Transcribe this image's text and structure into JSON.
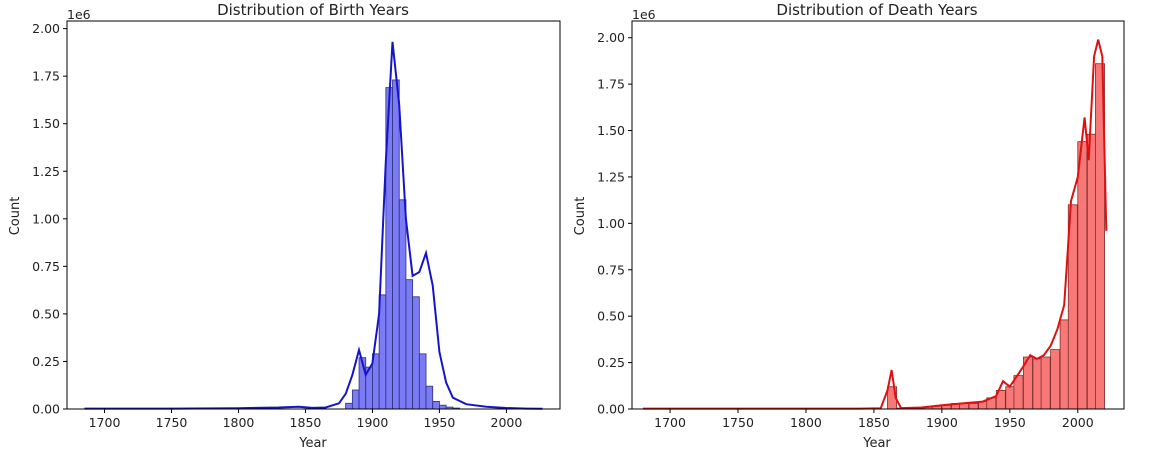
{
  "chart_data": [
    {
      "type": "bar",
      "title": "Distribution of Birth Years",
      "xlabel": "Year",
      "ylabel": "Count",
      "y_offset_label": "1e6",
      "xlim": [
        1672,
        2040
      ],
      "ylim": [
        0,
        2.04
      ],
      "x_ticks": [
        1700,
        1750,
        1800,
        1850,
        1900,
        1950,
        2000
      ],
      "y_ticks": [
        0.0,
        0.25,
        0.5,
        0.75,
        1.0,
        1.25,
        1.5,
        1.75,
        2.0
      ],
      "x_tick_labels": [
        "1700",
        "1750",
        "1800",
        "1850",
        "1900",
        "1950",
        "2000"
      ],
      "y_tick_labels": [
        "0.00",
        "0.25",
        "0.50",
        "0.75",
        "1.00",
        "1.25",
        "1.50",
        "1.75",
        "2.00"
      ],
      "grid": false,
      "colors": {
        "bar_fill": "#7b7bf5",
        "bar_edge": "#2f2f7a",
        "kde": "#1515c8"
      },
      "series": [
        {
          "kind": "histogram",
          "bin_width": 5,
          "bins": [
            [
              1880,
              0.03
            ],
            [
              1885,
              0.1
            ],
            [
              1890,
              0.27
            ],
            [
              1895,
              0.22
            ],
            [
              1900,
              0.29
            ],
            [
              1905,
              0.6
            ],
            [
              1910,
              1.69
            ],
            [
              1915,
              1.73
            ],
            [
              1920,
              1.1
            ],
            [
              1925,
              0.68
            ],
            [
              1930,
              0.59
            ],
            [
              1935,
              0.29
            ],
            [
              1940,
              0.12
            ],
            [
              1945,
              0.04
            ],
            [
              1950,
              0.02
            ],
            [
              1955,
              0.01
            ],
            [
              1960,
              0.005
            ]
          ]
        },
        {
          "kind": "kde",
          "points": [
            [
              1685,
              0.002
            ],
            [
              1750,
              0.002
            ],
            [
              1800,
              0.004
            ],
            [
              1830,
              0.008
            ],
            [
              1845,
              0.012
            ],
            [
              1855,
              0.006
            ],
            [
              1865,
              0.008
            ],
            [
              1875,
              0.03
            ],
            [
              1880,
              0.08
            ],
            [
              1885,
              0.18
            ],
            [
              1890,
              0.31
            ],
            [
              1895,
              0.18
            ],
            [
              1900,
              0.24
            ],
            [
              1905,
              0.5
            ],
            [
              1910,
              1.3
            ],
            [
              1915,
              1.93
            ],
            [
              1920,
              1.6
            ],
            [
              1925,
              1.0
            ],
            [
              1930,
              0.7
            ],
            [
              1935,
              0.72
            ],
            [
              1940,
              0.82
            ],
            [
              1945,
              0.65
            ],
            [
              1950,
              0.3
            ],
            [
              1955,
              0.14
            ],
            [
              1960,
              0.06
            ],
            [
              1970,
              0.025
            ],
            [
              1985,
              0.012
            ],
            [
              2000,
              0.005
            ],
            [
              2015,
              0.002
            ],
            [
              2027,
              0.001
            ]
          ]
        }
      ]
    },
    {
      "type": "bar",
      "title": "Distribution of Death Years",
      "xlabel": "Year",
      "ylabel": "Count",
      "y_offset_label": "1e6",
      "xlim": [
        1672,
        2034
      ],
      "ylim": [
        0,
        2.09
      ],
      "x_ticks": [
        1700,
        1750,
        1800,
        1850,
        1900,
        1950,
        2000
      ],
      "y_ticks": [
        0.0,
        0.25,
        0.5,
        0.75,
        1.0,
        1.25,
        1.5,
        1.75,
        2.0
      ],
      "x_tick_labels": [
        "1700",
        "1750",
        "1800",
        "1850",
        "1900",
        "1950",
        "2000"
      ],
      "y_tick_labels": [
        "0.00",
        "0.25",
        "0.50",
        "0.75",
        "1.00",
        "1.25",
        "1.50",
        "1.75",
        "2.00"
      ],
      "grid": false,
      "colors": {
        "bar_fill": "#f87878",
        "bar_edge": "#7a2f2f",
        "kde": "#e01010"
      },
      "series": [
        {
          "kind": "histogram",
          "bin_width": 6.7,
          "bins": [
            [
              1860,
              0.12
            ],
            [
              1867,
              0.005
            ],
            [
              1873,
              0.005
            ],
            [
              1880,
              0.005
            ],
            [
              1887,
              0.01
            ],
            [
              1893,
              0.015
            ],
            [
              1900,
              0.02
            ],
            [
              1907,
              0.03
            ],
            [
              1913,
              0.03
            ],
            [
              1920,
              0.03
            ],
            [
              1927,
              0.04
            ],
            [
              1933,
              0.06
            ],
            [
              1940,
              0.1
            ],
            [
              1947,
              0.12
            ],
            [
              1953,
              0.18
            ],
            [
              1960,
              0.28
            ],
            [
              1967,
              0.27
            ],
            [
              1973,
              0.28
            ],
            [
              1980,
              0.32
            ],
            [
              1987,
              0.48
            ],
            [
              1993,
              1.1
            ],
            [
              2000,
              1.44
            ],
            [
              2007,
              1.48
            ],
            [
              2013,
              1.86
            ]
          ]
        },
        {
          "kind": "kde",
          "points": [
            [
              1680,
              0.002
            ],
            [
              1760,
              0.002
            ],
            [
              1840,
              0.002
            ],
            [
              1855,
              0.004
            ],
            [
              1860,
              0.1
            ],
            [
              1863,
              0.21
            ],
            [
              1866,
              0.06
            ],
            [
              1870,
              0.005
            ],
            [
              1885,
              0.008
            ],
            [
              1900,
              0.02
            ],
            [
              1915,
              0.03
            ],
            [
              1930,
              0.04
            ],
            [
              1940,
              0.07
            ],
            [
              1945,
              0.15
            ],
            [
              1950,
              0.12
            ],
            [
              1960,
              0.23
            ],
            [
              1965,
              0.29
            ],
            [
              1970,
              0.27
            ],
            [
              1975,
              0.29
            ],
            [
              1980,
              0.34
            ],
            [
              1985,
              0.43
            ],
            [
              1990,
              0.56
            ],
            [
              1995,
              1.12
            ],
            [
              2000,
              1.25
            ],
            [
              2005,
              1.57
            ],
            [
              2008,
              1.34
            ],
            [
              2012,
              1.9
            ],
            [
              2015,
              1.99
            ],
            [
              2018,
              1.9
            ],
            [
              2021,
              0.96
            ]
          ]
        }
      ]
    }
  ]
}
